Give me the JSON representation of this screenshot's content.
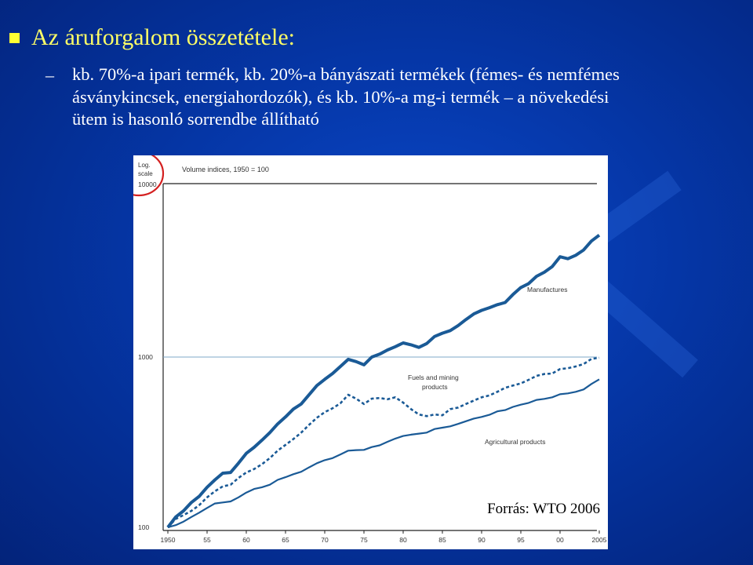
{
  "slide": {
    "title": "Az áruforgalom összetétele:",
    "dash": "–",
    "sub_line1": "kb. 70%-a ipari termék, kb. 20%-a bányászati termékek (fémes- és nemfémes",
    "sub_line2": "ásványkincsek, energiahordozók), és kb. 10%-a mg-i termék – a növekedési",
    "sub_line3": "ütem is hasonló sorrendbe állítható",
    "colors": {
      "background": "#0536a6",
      "title": "#ffff66",
      "text": "#ffffff",
      "circle": "#d42020",
      "line": "#1a5a96"
    }
  },
  "chart_data": {
    "type": "line",
    "title": "Volume indices, 1950 = 100",
    "scale_label_line1": "Log.",
    "scale_label_line2": "scale",
    "yscale": "log",
    "ylim": [
      100,
      10000
    ],
    "y_ticks": [
      "10000",
      "1000",
      "100"
    ],
    "x_ticks": [
      "1950",
      "55",
      "60",
      "65",
      "70",
      "75",
      "80",
      "85",
      "90",
      "95",
      "00",
      "2005"
    ],
    "xlim": [
      1950,
      2005
    ],
    "source": "Forrás: WTO 2006",
    "series": [
      {
        "name": "Manufactures",
        "label_line1": "Manufactures",
        "label_line2": "",
        "style": "solid-thick",
        "points": [
          [
            1950,
            100
          ],
          [
            1951,
            115
          ],
          [
            1952,
            125
          ],
          [
            1953,
            140
          ],
          [
            1954,
            152
          ],
          [
            1955,
            172
          ],
          [
            1956,
            190
          ],
          [
            1957,
            208
          ],
          [
            1958,
            210
          ],
          [
            1959,
            238
          ],
          [
            1960,
            272
          ],
          [
            1961,
            295
          ],
          [
            1962,
            325
          ],
          [
            1963,
            360
          ],
          [
            1964,
            405
          ],
          [
            1965,
            445
          ],
          [
            1966,
            495
          ],
          [
            1967,
            530
          ],
          [
            1968,
            600
          ],
          [
            1969,
            680
          ],
          [
            1970,
            740
          ],
          [
            1971,
            800
          ],
          [
            1972,
            880
          ],
          [
            1973,
            970
          ],
          [
            1974,
            940
          ],
          [
            1975,
            900
          ],
          [
            1976,
            1000
          ],
          [
            1977,
            1040
          ],
          [
            1978,
            1100
          ],
          [
            1979,
            1150
          ],
          [
            1980,
            1210
          ],
          [
            1981,
            1180
          ],
          [
            1982,
            1140
          ],
          [
            1983,
            1200
          ],
          [
            1984,
            1320
          ],
          [
            1985,
            1380
          ],
          [
            1986,
            1430
          ],
          [
            1987,
            1530
          ],
          [
            1988,
            1660
          ],
          [
            1989,
            1790
          ],
          [
            1990,
            1880
          ],
          [
            1991,
            1950
          ],
          [
            1992,
            2030
          ],
          [
            1993,
            2090
          ],
          [
            1994,
            2330
          ],
          [
            1995,
            2560
          ],
          [
            1996,
            2700
          ],
          [
            1997,
            2980
          ],
          [
            1998,
            3150
          ],
          [
            1999,
            3400
          ],
          [
            2000,
            3880
          ],
          [
            2001,
            3780
          ],
          [
            2002,
            3960
          ],
          [
            2003,
            4250
          ],
          [
            2004,
            4800
          ],
          [
            2005,
            5200
          ]
        ]
      },
      {
        "name": "Fuels and mining products",
        "label_line1": "Fuels and mining",
        "label_line2": "products",
        "style": "dotted",
        "points": [
          [
            1950,
            100
          ],
          [
            1951,
            112
          ],
          [
            1952,
            118
          ],
          [
            1953,
            125
          ],
          [
            1954,
            135
          ],
          [
            1955,
            150
          ],
          [
            1956,
            163
          ],
          [
            1957,
            174
          ],
          [
            1958,
            178
          ],
          [
            1959,
            195
          ],
          [
            1960,
            210
          ],
          [
            1961,
            220
          ],
          [
            1962,
            235
          ],
          [
            1963,
            255
          ],
          [
            1964,
            282
          ],
          [
            1965,
            305
          ],
          [
            1966,
            330
          ],
          [
            1967,
            360
          ],
          [
            1968,
            400
          ],
          [
            1969,
            440
          ],
          [
            1970,
            475
          ],
          [
            1971,
            500
          ],
          [
            1972,
            535
          ],
          [
            1973,
            600
          ],
          [
            1974,
            570
          ],
          [
            1975,
            530
          ],
          [
            1976,
            570
          ],
          [
            1977,
            575
          ],
          [
            1978,
            565
          ],
          [
            1979,
            580
          ],
          [
            1980,
            540
          ],
          [
            1981,
            495
          ],
          [
            1982,
            460
          ],
          [
            1983,
            450
          ],
          [
            1984,
            460
          ],
          [
            1985,
            455
          ],
          [
            1986,
            495
          ],
          [
            1987,
            505
          ],
          [
            1988,
            530
          ],
          [
            1989,
            555
          ],
          [
            1990,
            580
          ],
          [
            1991,
            595
          ],
          [
            1992,
            625
          ],
          [
            1993,
            660
          ],
          [
            1994,
            680
          ],
          [
            1995,
            700
          ],
          [
            1996,
            735
          ],
          [
            1997,
            775
          ],
          [
            1998,
            795
          ],
          [
            1999,
            800
          ],
          [
            2000,
            850
          ],
          [
            2001,
            860
          ],
          [
            2002,
            880
          ],
          [
            2003,
            910
          ],
          [
            2004,
            975
          ],
          [
            2005,
            990
          ]
        ]
      },
      {
        "name": "Agricultural products",
        "label_line1": "Agricultural products",
        "label_line2": "",
        "style": "solid",
        "points": [
          [
            1950,
            100
          ],
          [
            1951,
            103
          ],
          [
            1952,
            108
          ],
          [
            1953,
            115
          ],
          [
            1954,
            122
          ],
          [
            1955,
            130
          ],
          [
            1956,
            138
          ],
          [
            1957,
            140
          ],
          [
            1958,
            142
          ],
          [
            1959,
            150
          ],
          [
            1960,
            160
          ],
          [
            1961,
            168
          ],
          [
            1962,
            172
          ],
          [
            1963,
            178
          ],
          [
            1964,
            190
          ],
          [
            1965,
            197
          ],
          [
            1966,
            205
          ],
          [
            1967,
            212
          ],
          [
            1968,
            225
          ],
          [
            1969,
            238
          ],
          [
            1970,
            248
          ],
          [
            1971,
            255
          ],
          [
            1972,
            268
          ],
          [
            1973,
            282
          ],
          [
            1974,
            284
          ],
          [
            1975,
            285
          ],
          [
            1976,
            296
          ],
          [
            1977,
            303
          ],
          [
            1978,
            318
          ],
          [
            1979,
            332
          ],
          [
            1980,
            344
          ],
          [
            1981,
            350
          ],
          [
            1982,
            355
          ],
          [
            1983,
            360
          ],
          [
            1984,
            378
          ],
          [
            1985,
            385
          ],
          [
            1986,
            392
          ],
          [
            1987,
            405
          ],
          [
            1988,
            420
          ],
          [
            1989,
            435
          ],
          [
            1990,
            445
          ],
          [
            1991,
            458
          ],
          [
            1992,
            480
          ],
          [
            1993,
            488
          ],
          [
            1994,
            510
          ],
          [
            1995,
            525
          ],
          [
            1996,
            538
          ],
          [
            1997,
            560
          ],
          [
            1998,
            568
          ],
          [
            1999,
            580
          ],
          [
            2000,
            605
          ],
          [
            2001,
            612
          ],
          [
            2002,
            625
          ],
          [
            2003,
            645
          ],
          [
            2004,
            695
          ],
          [
            2005,
            740
          ]
        ]
      }
    ]
  }
}
